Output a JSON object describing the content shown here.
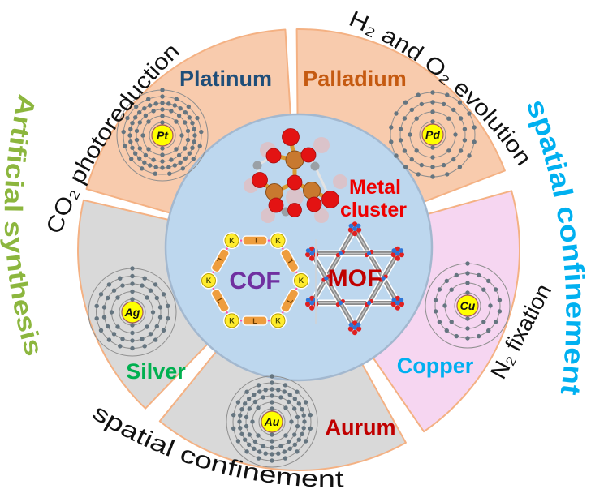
{
  "diagram": {
    "title_labels": {
      "co2": "CO₂ photoreduction",
      "h2o2": "H₂ and O₂ evolution",
      "spatial_right": "spatial confinement",
      "spatial_bottom": "spatial confinement",
      "artificial": "Artificial synthesis",
      "n2": "N₂ fixation"
    },
    "center": {
      "metal_cluster_line1": "Metal",
      "metal_cluster_line2": "cluster",
      "cof": "COF",
      "mof": "MOF",
      "cof_node_label": "K",
      "cof_linker_label": "L"
    },
    "elements": [
      {
        "symbol": "Pt",
        "name": "Platinum",
        "name_color": "#1f4e79",
        "shells": [
          2,
          8,
          18,
          32,
          17,
          1
        ],
        "segment_color_key": "peach_segment"
      },
      {
        "symbol": "Pd",
        "name": "Palladium",
        "name_color": "#c55a11",
        "shells": [
          2,
          8,
          18,
          18
        ],
        "segment_color_key": "peach_segment"
      },
      {
        "symbol": "Ag",
        "name": "Silver",
        "name_color": "#00b050",
        "shells": [
          2,
          8,
          18,
          18,
          1
        ],
        "segment_color_key": "gray_segment"
      },
      {
        "symbol": "Au",
        "name": "Aurum",
        "name_color": "#c00000",
        "shells": [
          2,
          8,
          18,
          32,
          18,
          1
        ],
        "segment_color_key": "gray_segment"
      },
      {
        "symbol": "Cu",
        "name": "Copper",
        "name_color": "#00b0f0",
        "shells": [
          2,
          8,
          18,
          1
        ],
        "segment_color_key": "pink_segment"
      }
    ],
    "colors": {
      "peach_segment": "#f8cbad",
      "gray_segment": "#d9d9d9",
      "pink_segment": "#f6d6f1",
      "segment_outline": "#f4b183",
      "center_circle": "#bdd7ee",
      "center_circle_outline": "#a3b8cf",
      "metal_cluster_text": "#ee0000",
      "cof_text": "#7030a0",
      "mof_text": "#c00000",
      "artificial_text": "#8cb63e",
      "spatial_right_text": "#00b0f0",
      "black_text": "#111111",
      "nucleus_fill": "#ffff00",
      "electron_dot": "#657580",
      "cof_link_line": "#ff4fae",
      "cof_linker_fill": "#ee9d3e",
      "mof_rod": "#8b8b8b",
      "mof_red": "#e02020",
      "mof_blue": "#2e74d6",
      "cluster_metal": "#c8792f",
      "cluster_oxygen": "#e31313",
      "cluster_carbon": "#9aa0a6",
      "cluster_bond": "#d99a33"
    }
  }
}
